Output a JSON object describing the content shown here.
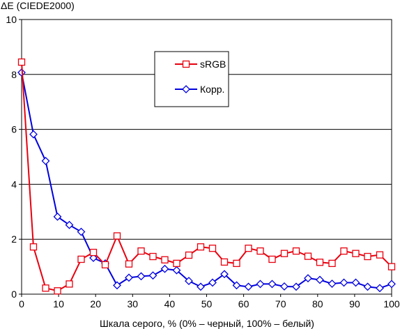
{
  "chart_data": {
    "type": "line",
    "title": "",
    "ylabel": "ΔE (CIEDE2000)",
    "xlabel": "Шкала серого, % (0% – черный, 100% – белый)",
    "xlim": [
      0,
      100
    ],
    "ylim": [
      0,
      10
    ],
    "x_ticks": [
      0,
      10,
      20,
      30,
      40,
      50,
      60,
      70,
      80,
      90,
      100
    ],
    "y_ticks": [
      0,
      2,
      4,
      6,
      8,
      10
    ],
    "grid": "horizontal",
    "legend": "top-center",
    "x": [
      0,
      3.2,
      6.5,
      9.7,
      12.9,
      16.1,
      19.4,
      22.6,
      25.8,
      29.0,
      32.3,
      35.5,
      38.7,
      41.9,
      45.2,
      48.4,
      51.6,
      54.8,
      58.1,
      61.3,
      64.5,
      67.7,
      71.0,
      74.2,
      77.4,
      80.6,
      83.9,
      87.1,
      90.3,
      93.5,
      96.8,
      100
    ],
    "series": [
      {
        "name": "sRGB",
        "color": "#e8000e",
        "marker": "square",
        "values": [
          8.45,
          1.72,
          0.22,
          0.12,
          0.37,
          1.27,
          1.52,
          1.07,
          2.12,
          1.1,
          1.57,
          1.37,
          1.25,
          1.12,
          1.42,
          1.72,
          1.67,
          1.17,
          1.12,
          1.67,
          1.57,
          1.27,
          1.48,
          1.57,
          1.38,
          1.16,
          1.12,
          1.57,
          1.48,
          1.37,
          1.43,
          1.0
        ]
      },
      {
        "name": "Корр.",
        "color": "#0000e0",
        "marker": "diamond",
        "values": [
          8.07,
          5.82,
          4.85,
          2.82,
          2.52,
          2.27,
          1.32,
          1.12,
          0.32,
          0.6,
          0.65,
          0.68,
          0.92,
          0.87,
          0.48,
          0.27,
          0.42,
          0.73,
          0.32,
          0.27,
          0.37,
          0.37,
          0.28,
          0.27,
          0.58,
          0.52,
          0.38,
          0.42,
          0.42,
          0.27,
          0.22,
          0.37
        ]
      }
    ]
  }
}
